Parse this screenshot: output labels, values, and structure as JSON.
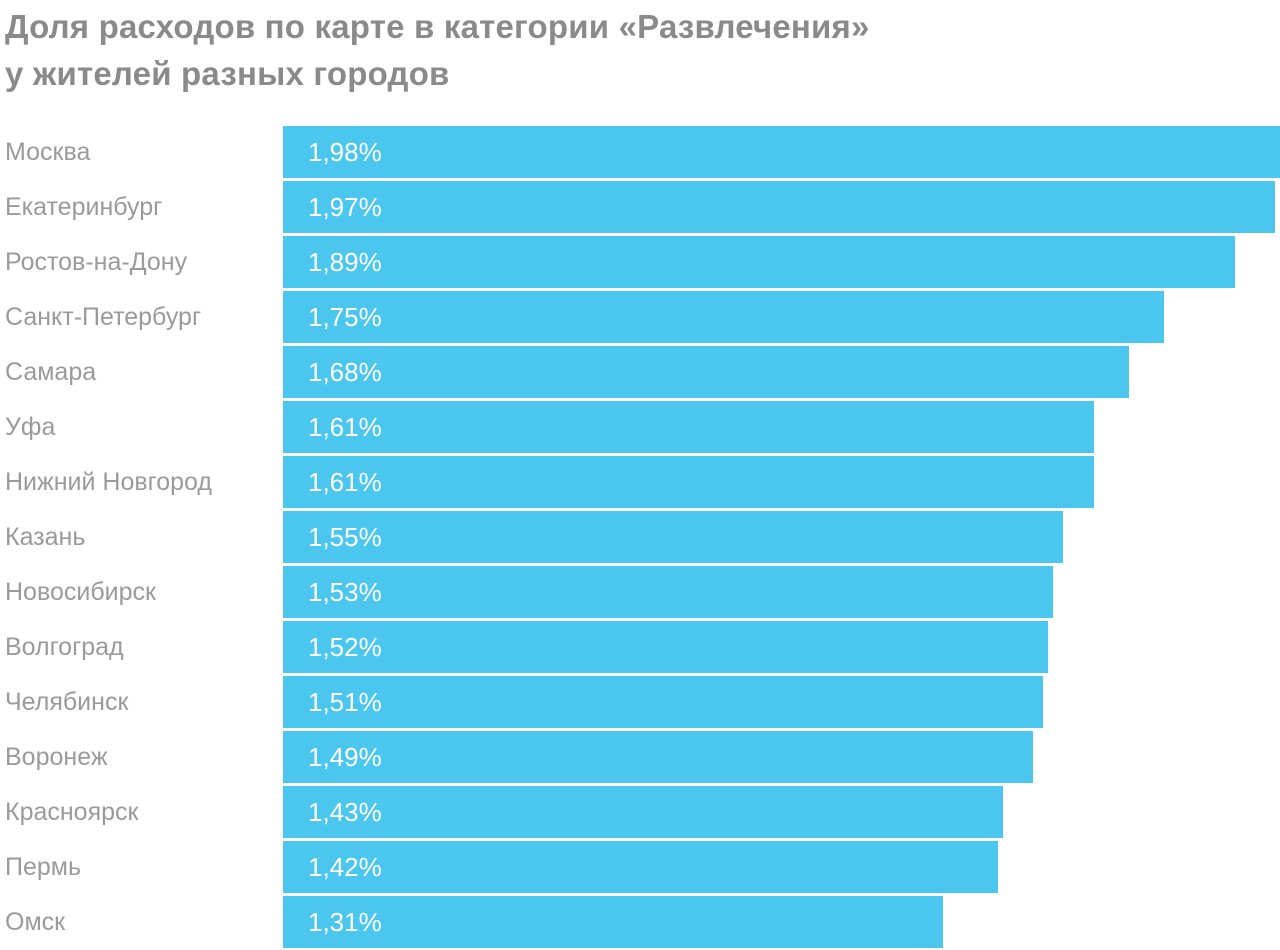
{
  "chart_data": {
    "type": "bar",
    "orientation": "horizontal",
    "title": "Доля расходов по карте в категории «Развлечения» у жителей разных городов",
    "title_lines": [
      "Доля расходов по карте в категории «Развлечения»",
      "у жителей разных городов"
    ],
    "categories": [
      "Москва",
      "Екатеринбург",
      "Ростов-на-Дону",
      "Санкт-Петербург",
      "Самара",
      "Уфа",
      "Нижний Новгород",
      "Казань",
      "Новосибирск",
      "Волгоград",
      "Челябинск",
      "Воронеж",
      "Красноярск",
      "Пермь",
      "Омск"
    ],
    "values": [
      1.98,
      1.97,
      1.89,
      1.75,
      1.68,
      1.61,
      1.61,
      1.55,
      1.53,
      1.52,
      1.51,
      1.49,
      1.43,
      1.42,
      1.31
    ],
    "value_labels": [
      "1,98%",
      "1,97%",
      "1,89%",
      "1,75%",
      "1,68%",
      "1,61%",
      "1,61%",
      "1,55%",
      "1,53%",
      "1,52%",
      "1,51%",
      "1,49%",
      "1,43%",
      "1,42%",
      "1,31%"
    ],
    "xlim": [
      0,
      1.98
    ],
    "grid": false,
    "legend": false,
    "colors": {
      "bar": "#4BC6EF",
      "title_text": "#8A8A8A",
      "category_label_text": "#9A9A9A",
      "value_label_text": "#FFFFFF",
      "background": "#FFFFFF"
    }
  }
}
